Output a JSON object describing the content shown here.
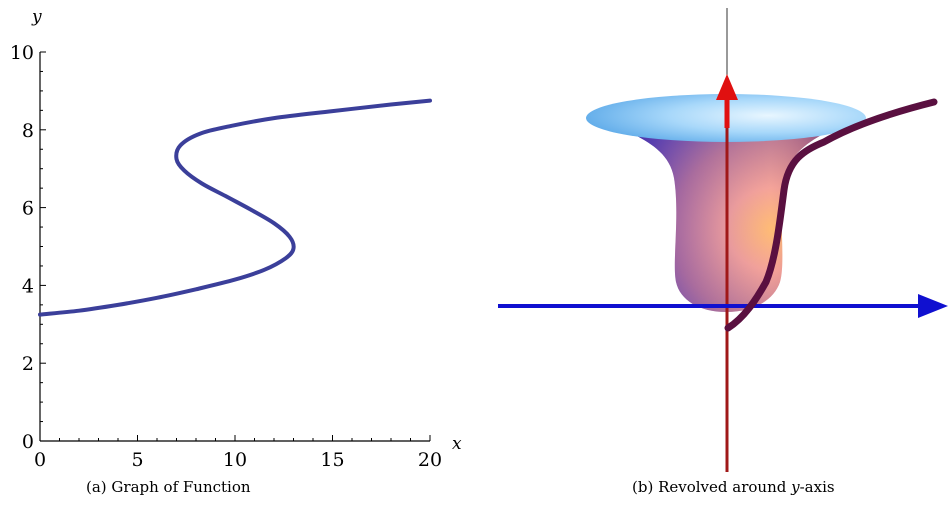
{
  "chart_data": [
    {
      "type": "line",
      "title": "",
      "xlabel": "x",
      "ylabel": "y",
      "xlim": [
        0,
        20
      ],
      "ylim": [
        0,
        10
      ],
      "x_ticks": [
        "0",
        "5",
        "10",
        "15",
        "20"
      ],
      "y_ticks": [
        "0",
        "2",
        "4",
        "6",
        "8",
        "10"
      ],
      "grid": false,
      "series": [
        {
          "color": "#3b3f9a",
          "points": [
            [
              0,
              3.25
            ],
            [
              2,
              3.35
            ],
            [
              4,
              3.5
            ],
            [
              6,
              3.68
            ],
            [
              8,
              3.9
            ],
            [
              10,
              4.15
            ],
            [
              11.5,
              4.4
            ],
            [
              12.6,
              4.7
            ],
            [
              13,
              4.95
            ],
            [
              12.8,
              5.25
            ],
            [
              12,
              5.6
            ],
            [
              10.8,
              5.95
            ],
            [
              9.5,
              6.3
            ],
            [
              8.3,
              6.62
            ],
            [
              7.4,
              6.95
            ],
            [
              7,
              7.25
            ],
            [
              7.2,
              7.6
            ],
            [
              8.2,
              7.9
            ],
            [
              9.8,
              8.1
            ],
            [
              12,
              8.3
            ],
            [
              15,
              8.48
            ],
            [
              18,
              8.65
            ],
            [
              20,
              8.75
            ]
          ]
        }
      ],
      "caption": "(a) Graph of Function"
    },
    {
      "type": "other",
      "description_caption": "(b) Revolved around y-axis",
      "caption_pre": "(b) Revolved around ",
      "caption_var": "y",
      "caption_post": "-axis"
    }
  ],
  "colors": {
    "curve": "#3b3f9a",
    "x_axis_3d": "#1010d0",
    "y_axis_3d": "#a01818",
    "arrow_up": "#e01010",
    "surface_top": "#a8d8f8",
    "surface_body": "#b07090",
    "profile_curve": "#5a1040"
  }
}
